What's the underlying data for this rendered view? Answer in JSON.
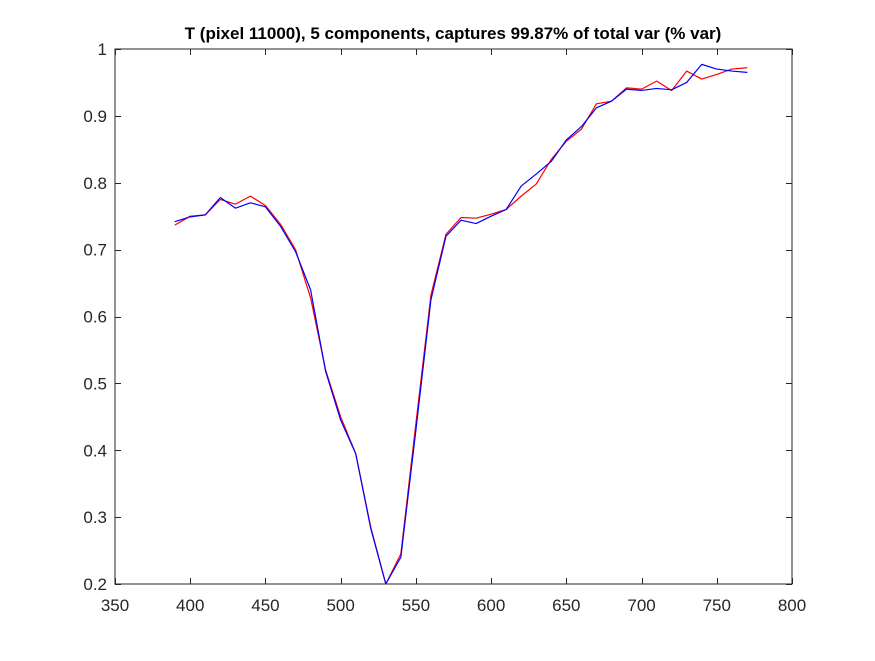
{
  "chart_data": {
    "type": "line",
    "title": "T (pixel 11000), 5 components, captures 99.87% of total var (% var)",
    "xlabel": "",
    "ylabel": "",
    "xlim": [
      350,
      800
    ],
    "ylim": [
      0.2,
      1
    ],
    "xticks": [
      350,
      400,
      450,
      500,
      550,
      600,
      650,
      700,
      750,
      800
    ],
    "xtick_labels": [
      "350",
      "400",
      "450",
      "500",
      "550",
      "600",
      "650",
      "700",
      "750",
      "800"
    ],
    "yticks": [
      0.2,
      0.3,
      0.4,
      0.5,
      0.6,
      0.7,
      0.8,
      0.9,
      1
    ],
    "ytick_labels": [
      "0.2",
      "0.3",
      "0.4",
      "0.5",
      "0.6",
      "0.7",
      "0.8",
      "0.9",
      "1"
    ],
    "grid": false,
    "legend": "none",
    "x": [
      390,
      400,
      410,
      420,
      430,
      440,
      450,
      460,
      470,
      480,
      490,
      500,
      510,
      520,
      530,
      540,
      550,
      560,
      570,
      580,
      590,
      600,
      610,
      620,
      630,
      640,
      650,
      660,
      670,
      680,
      690,
      700,
      710,
      720,
      730,
      740,
      750,
      760,
      770
    ],
    "series": [
      {
        "color": "#ff0000",
        "values": [
          0.737,
          0.75,
          0.752,
          0.775,
          0.768,
          0.78,
          0.766,
          0.738,
          0.7,
          0.628,
          0.52,
          0.45,
          0.395,
          0.285,
          0.2,
          0.245,
          0.44,
          0.632,
          0.723,
          0.748,
          0.747,
          0.753,
          0.76,
          0.78,
          0.798,
          0.835,
          0.862,
          0.88,
          0.918,
          0.922,
          0.942,
          0.94,
          0.952,
          0.938,
          0.967,
          0.955,
          0.962,
          0.97,
          0.972
        ]
      },
      {
        "color": "#0000ff",
        "values": [
          0.742,
          0.749,
          0.752,
          0.778,
          0.762,
          0.77,
          0.764,
          0.735,
          0.697,
          0.64,
          0.518,
          0.445,
          0.395,
          0.283,
          0.2,
          0.24,
          0.43,
          0.625,
          0.72,
          0.744,
          0.739,
          0.75,
          0.76,
          0.795,
          0.813,
          0.832,
          0.864,
          0.884,
          0.912,
          0.922,
          0.94,
          0.938,
          0.941,
          0.939,
          0.95,
          0.977,
          0.97,
          0.967,
          0.965
        ]
      }
    ]
  }
}
